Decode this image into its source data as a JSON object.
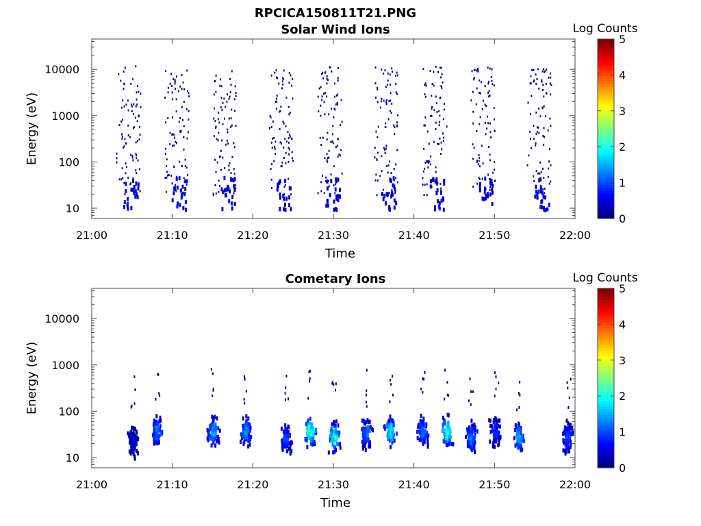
{
  "figure": {
    "title": "RPCICA150811T21.PNG"
  },
  "chart_data": [
    {
      "type": "heatmap",
      "title": "Solar Wind Ions",
      "xlabel": "Time",
      "ylabel": "Energy (eV)",
      "y_scale": "log",
      "ylim": [
        6,
        45000
      ],
      "xlim": [
        "21:00",
        "22:00"
      ],
      "x_ticks": [
        "21:00",
        "21:10",
        "21:20",
        "21:30",
        "21:40",
        "21:50",
        "22:00"
      ],
      "y_ticks": [
        "10",
        "100",
        "1000",
        "10000"
      ],
      "colorbar": {
        "label": "Log Counts",
        "ticks": [
          "0",
          "1",
          "2",
          "3",
          "4",
          "5"
        ],
        "range": [
          0,
          5
        ],
        "colormap": "jet"
      },
      "sweeps": [
        {
          "start": "21:03",
          "end": "21:06"
        },
        {
          "start": "21:09",
          "end": "21:12"
        },
        {
          "start": "21:15",
          "end": "21:18"
        },
        {
          "start": "21:22",
          "end": "21:25"
        },
        {
          "start": "21:28",
          "end": "21:31"
        },
        {
          "start": "21:35",
          "end": "21:38"
        },
        {
          "start": "21:41",
          "end": "21:44"
        },
        {
          "start": "21:47",
          "end": "21:50"
        },
        {
          "start": "21:54",
          "end": "21:57"
        }
      ],
      "intensity_log_counts": "mostly 0-0.5, energies about 10 eV to 12000 eV"
    },
    {
      "type": "heatmap",
      "title": "Cometary Ions",
      "xlabel": "Time",
      "ylabel": "Energy (eV)",
      "y_scale": "log",
      "ylim": [
        6,
        45000
      ],
      "xlim": [
        "21:00",
        "22:00"
      ],
      "x_ticks": [
        "21:00",
        "21:10",
        "21:20",
        "21:30",
        "21:40",
        "21:50",
        "22:00"
      ],
      "y_ticks": [
        "10",
        "100",
        "1000",
        "10000"
      ],
      "colorbar": {
        "label": "Log Counts",
        "ticks": [
          "0",
          "1",
          "2",
          "3",
          "4",
          "5"
        ],
        "range": [
          0,
          5
        ],
        "colormap": "jet"
      },
      "bursts": [
        {
          "time": "21:05",
          "peak_energy_ev": 25,
          "peak_log_counts": 0.5
        },
        {
          "time": "21:08",
          "peak_energy_ev": 40,
          "peak_log_counts": 1.5
        },
        {
          "time": "21:15",
          "peak_energy_ev": 40,
          "peak_log_counts": 1.8
        },
        {
          "time": "21:19",
          "peak_energy_ev": 40,
          "peak_log_counts": 1.5
        },
        {
          "time": "21:24",
          "peak_energy_ev": 30,
          "peak_log_counts": 1.2
        },
        {
          "time": "21:27",
          "peak_energy_ev": 40,
          "peak_log_counts": 2.8
        },
        {
          "time": "21:30",
          "peak_energy_ev": 30,
          "peak_log_counts": 2.3
        },
        {
          "time": "21:34",
          "peak_energy_ev": 40,
          "peak_log_counts": 1.5
        },
        {
          "time": "21:37",
          "peak_energy_ev": 40,
          "peak_log_counts": 2.2
        },
        {
          "time": "21:41",
          "peak_energy_ev": 40,
          "peak_log_counts": 1.5
        },
        {
          "time": "21:44",
          "peak_energy_ev": 40,
          "peak_log_counts": 2.5
        },
        {
          "time": "21:47",
          "peak_energy_ev": 30,
          "peak_log_counts": 1.5
        },
        {
          "time": "21:50",
          "peak_energy_ev": 40,
          "peak_log_counts": 1.0
        },
        {
          "time": "21:53",
          "peak_energy_ev": 30,
          "peak_log_counts": 1.8
        },
        {
          "time": "21:59",
          "peak_energy_ev": 30,
          "peak_log_counts": 1.2
        }
      ]
    }
  ]
}
